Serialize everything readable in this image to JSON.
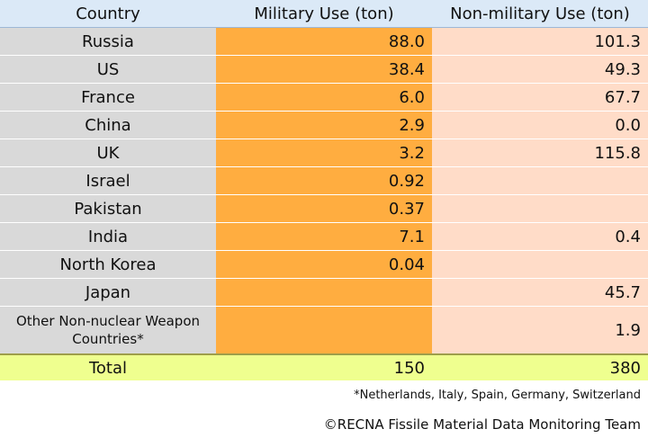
{
  "chart_data": {
    "type": "table",
    "columns": [
      "Country",
      "Military Use (ton)",
      "Non-military Use (ton)"
    ],
    "rows": [
      {
        "country": "Russia",
        "military": "88.0",
        "nonmilitary": "101.3"
      },
      {
        "country": "US",
        "military": "38.4",
        "nonmilitary": "49.3"
      },
      {
        "country": "France",
        "military": "6.0",
        "nonmilitary": "67.7"
      },
      {
        "country": "China",
        "military": "2.9",
        "nonmilitary": "0.0"
      },
      {
        "country": "UK",
        "military": "3.2",
        "nonmilitary": "115.8"
      },
      {
        "country": "Israel",
        "military": "0.92",
        "nonmilitary": ""
      },
      {
        "country": "Pakistan",
        "military": "0.37",
        "nonmilitary": ""
      },
      {
        "country": "India",
        "military": "7.1",
        "nonmilitary": "0.4"
      },
      {
        "country": "North Korea",
        "military": "0.04",
        "nonmilitary": ""
      },
      {
        "country": "Japan",
        "military": "",
        "nonmilitary": "45.7"
      },
      {
        "country": "Other Non-nuclear Weapon Countries*",
        "military": "",
        "nonmilitary": "1.9"
      }
    ],
    "total": {
      "label": "Total",
      "military": "150",
      "nonmilitary": "380"
    }
  },
  "footnote": "*Netherlands, Italy, Spain, Germany, Switzerland",
  "credit": "©RECNA Fissile Material Data Monitoring Team",
  "colors": {
    "header_bg": "#dbe9f7",
    "country_bg": "#d9d9d9",
    "military_bg": "#ffad40",
    "nonmilitary_bg": "#ffdcc8",
    "total_bg": "#efff8f"
  }
}
